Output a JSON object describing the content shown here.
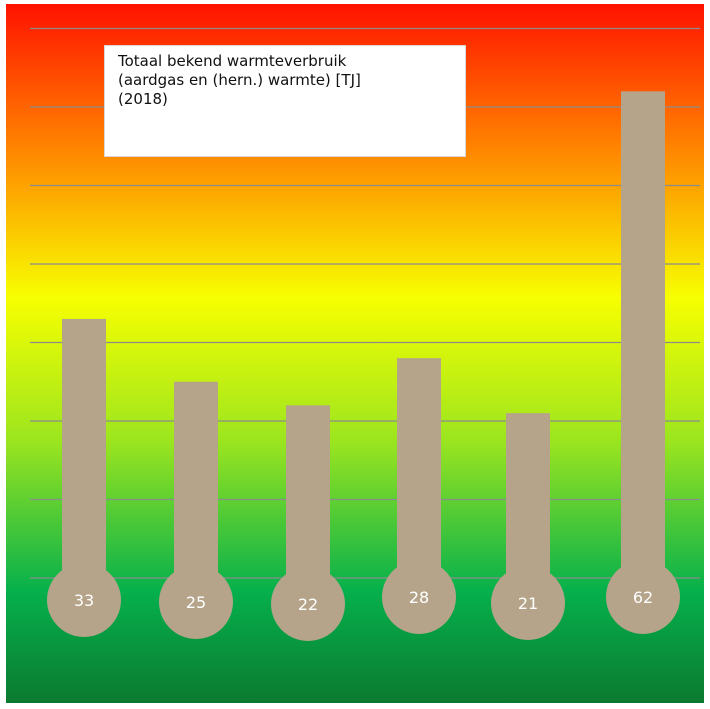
{
  "chart_data": {
    "type": "bar",
    "title_lines": [
      "Totaal bekend warmteverbruik",
      "(aardgas en (hern.) warmte) [TJ]",
      "(2018)"
    ],
    "categories": [],
    "values": [
      33,
      25,
      22,
      28,
      21,
      62
    ],
    "labels": [
      "33",
      "25",
      "22",
      "28",
      "21",
      "62"
    ],
    "ylim": [
      0,
      70
    ],
    "grid": true,
    "legend": "none",
    "colors": {
      "bar": "#b5a48a",
      "label_text": "#ffffff",
      "gridline": "#8c8c8c",
      "gradient": [
        "#ff1200",
        "#ff8c00",
        "#f7ff00",
        "#9ee61e",
        "#06b04c",
        "#0b7a30"
      ]
    }
  }
}
